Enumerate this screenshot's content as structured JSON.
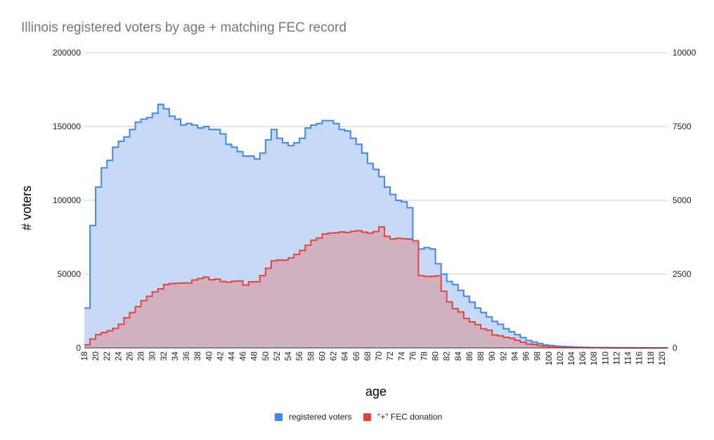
{
  "chart_data": {
    "type": "area",
    "title": "Illinois registered voters by age  + matching FEC record",
    "xlabel": "age",
    "ylabel": "# voters",
    "y2label": "",
    "ylim": [
      0,
      200000
    ],
    "y2lim": [
      0,
      10000
    ],
    "yticks": [
      "0",
      "50000",
      "100000",
      "150000",
      "200000"
    ],
    "y2ticks": [
      "0",
      "2500",
      "5000",
      "7500",
      "10000"
    ],
    "xticks": [
      "18",
      "20",
      "22",
      "24",
      "26",
      "28",
      "30",
      "32",
      "34",
      "36",
      "38",
      "40",
      "42",
      "44",
      "46",
      "48",
      "50",
      "52",
      "54",
      "56",
      "58",
      "60",
      "62",
      "64",
      "66",
      "68",
      "70",
      "72",
      "74",
      "76",
      "78",
      "80",
      "82",
      "84",
      "86",
      "88",
      "90",
      "92",
      "94",
      "96",
      "98",
      "100",
      "102",
      "104",
      "106",
      "108",
      "110",
      "112",
      "114",
      "116",
      "118",
      "120"
    ],
    "grid": true,
    "legend_position": "bottom",
    "x": [
      18,
      19,
      20,
      21,
      22,
      23,
      24,
      25,
      26,
      27,
      28,
      29,
      30,
      31,
      32,
      33,
      34,
      35,
      36,
      37,
      38,
      39,
      40,
      41,
      42,
      43,
      44,
      45,
      46,
      47,
      48,
      49,
      50,
      51,
      52,
      53,
      54,
      55,
      56,
      57,
      58,
      59,
      60,
      61,
      62,
      63,
      64,
      65,
      66,
      67,
      68,
      69,
      70,
      71,
      72,
      73,
      74,
      75,
      76,
      77,
      78,
      79,
      80,
      81,
      82,
      83,
      84,
      85,
      86,
      87,
      88,
      89,
      90,
      91,
      92,
      93,
      94,
      95,
      96,
      97,
      98,
      99,
      100,
      101,
      102,
      103,
      104,
      105,
      106,
      107,
      108,
      109,
      110,
      111,
      112,
      113,
      114,
      115,
      116,
      117,
      118,
      119,
      120,
      121
    ],
    "series": [
      {
        "name": "registered voters",
        "axis": "left",
        "color": "#4285f4",
        "fill": "#c6d9f7",
        "values": [
          27000,
          83000,
          109000,
          122000,
          127000,
          136000,
          140000,
          143000,
          148000,
          153000,
          155000,
          156000,
          159000,
          165000,
          162000,
          157000,
          155000,
          151000,
          152000,
          151000,
          149000,
          150000,
          148000,
          148000,
          145000,
          138000,
          136000,
          133000,
          130000,
          130000,
          128000,
          132000,
          141000,
          148000,
          142000,
          139000,
          137000,
          139000,
          142000,
          149000,
          151000,
          152000,
          154000,
          154000,
          152000,
          148000,
          147000,
          142000,
          138000,
          132000,
          125000,
          121000,
          116000,
          109000,
          104000,
          100000,
          99000,
          95000,
          71000,
          67000,
          68000,
          67000,
          57000,
          50000,
          45000,
          43000,
          39000,
          35000,
          31000,
          27000,
          24000,
          21000,
          18000,
          16000,
          13000,
          11000,
          9000,
          7000,
          5000,
          4000,
          3000,
          2000,
          1600,
          1200,
          1000,
          800,
          600,
          500,
          400,
          300,
          250,
          200,
          150,
          120,
          100,
          80,
          60,
          50,
          40,
          30,
          20,
          10,
          5,
          0
        ]
      },
      {
        "name": "\"+\" FEC donation",
        "axis": "right",
        "color": "#ea4335",
        "fill": "#d0a9b8",
        "values": [
          100,
          300,
          450,
          520,
          580,
          660,
          800,
          1020,
          1200,
          1400,
          1600,
          1750,
          1900,
          2000,
          2150,
          2180,
          2190,
          2200,
          2200,
          2300,
          2350,
          2400,
          2310,
          2330,
          2250,
          2230,
          2260,
          2270,
          2130,
          2240,
          2240,
          2450,
          2700,
          2950,
          2980,
          2970,
          3050,
          3170,
          3300,
          3480,
          3650,
          3720,
          3860,
          3890,
          3900,
          3930,
          3910,
          3950,
          3970,
          3920,
          3890,
          3940,
          4100,
          3780,
          3690,
          3710,
          3700,
          3690,
          3630,
          2450,
          2420,
          2430,
          2440,
          1920,
          1560,
          1330,
          1220,
          1000,
          880,
          790,
          650,
          600,
          440,
          410,
          360,
          330,
          260,
          190,
          130,
          120,
          80,
          60,
          50,
          40,
          30,
          25,
          20,
          15,
          12,
          10,
          8,
          6,
          5,
          4,
          3,
          2,
          2,
          1,
          1,
          0,
          0,
          0,
          0,
          0
        ]
      }
    ]
  }
}
